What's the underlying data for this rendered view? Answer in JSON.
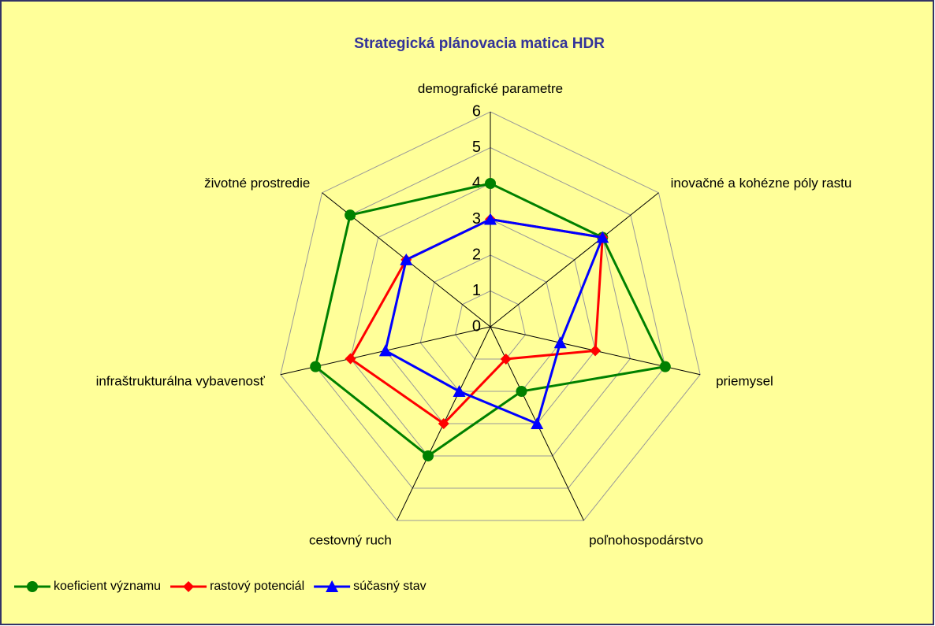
{
  "chart_data": {
    "type": "radar",
    "title": "Strategická plánovacia matica HDR",
    "categories": [
      "demografické parametre",
      "inovačné a kohézne póly rastu",
      "priemysel",
      "poľnohospodárstvo",
      "cestovný ruch",
      "infraštrukturálna vybavenosť",
      "životné prostredie"
    ],
    "series": [
      {
        "name": "koeficient významu",
        "color": "#008000",
        "marker": "circle",
        "values": [
          4,
          4,
          5,
          2,
          4,
          5,
          5
        ]
      },
      {
        "name": "rastový potenciál",
        "color": "#ff0000",
        "marker": "diamond",
        "values": [
          3,
          4,
          3,
          1,
          3,
          4,
          3
        ]
      },
      {
        "name": "súčasný stav",
        "color": "#0000ff",
        "marker": "triangle",
        "values": [
          3,
          4,
          2,
          3,
          2,
          3,
          3
        ]
      }
    ],
    "ylim": [
      0,
      6
    ],
    "yticks": [
      0,
      1,
      2,
      3,
      4,
      5,
      6
    ],
    "grid": true,
    "legend": "bottom-left"
  }
}
